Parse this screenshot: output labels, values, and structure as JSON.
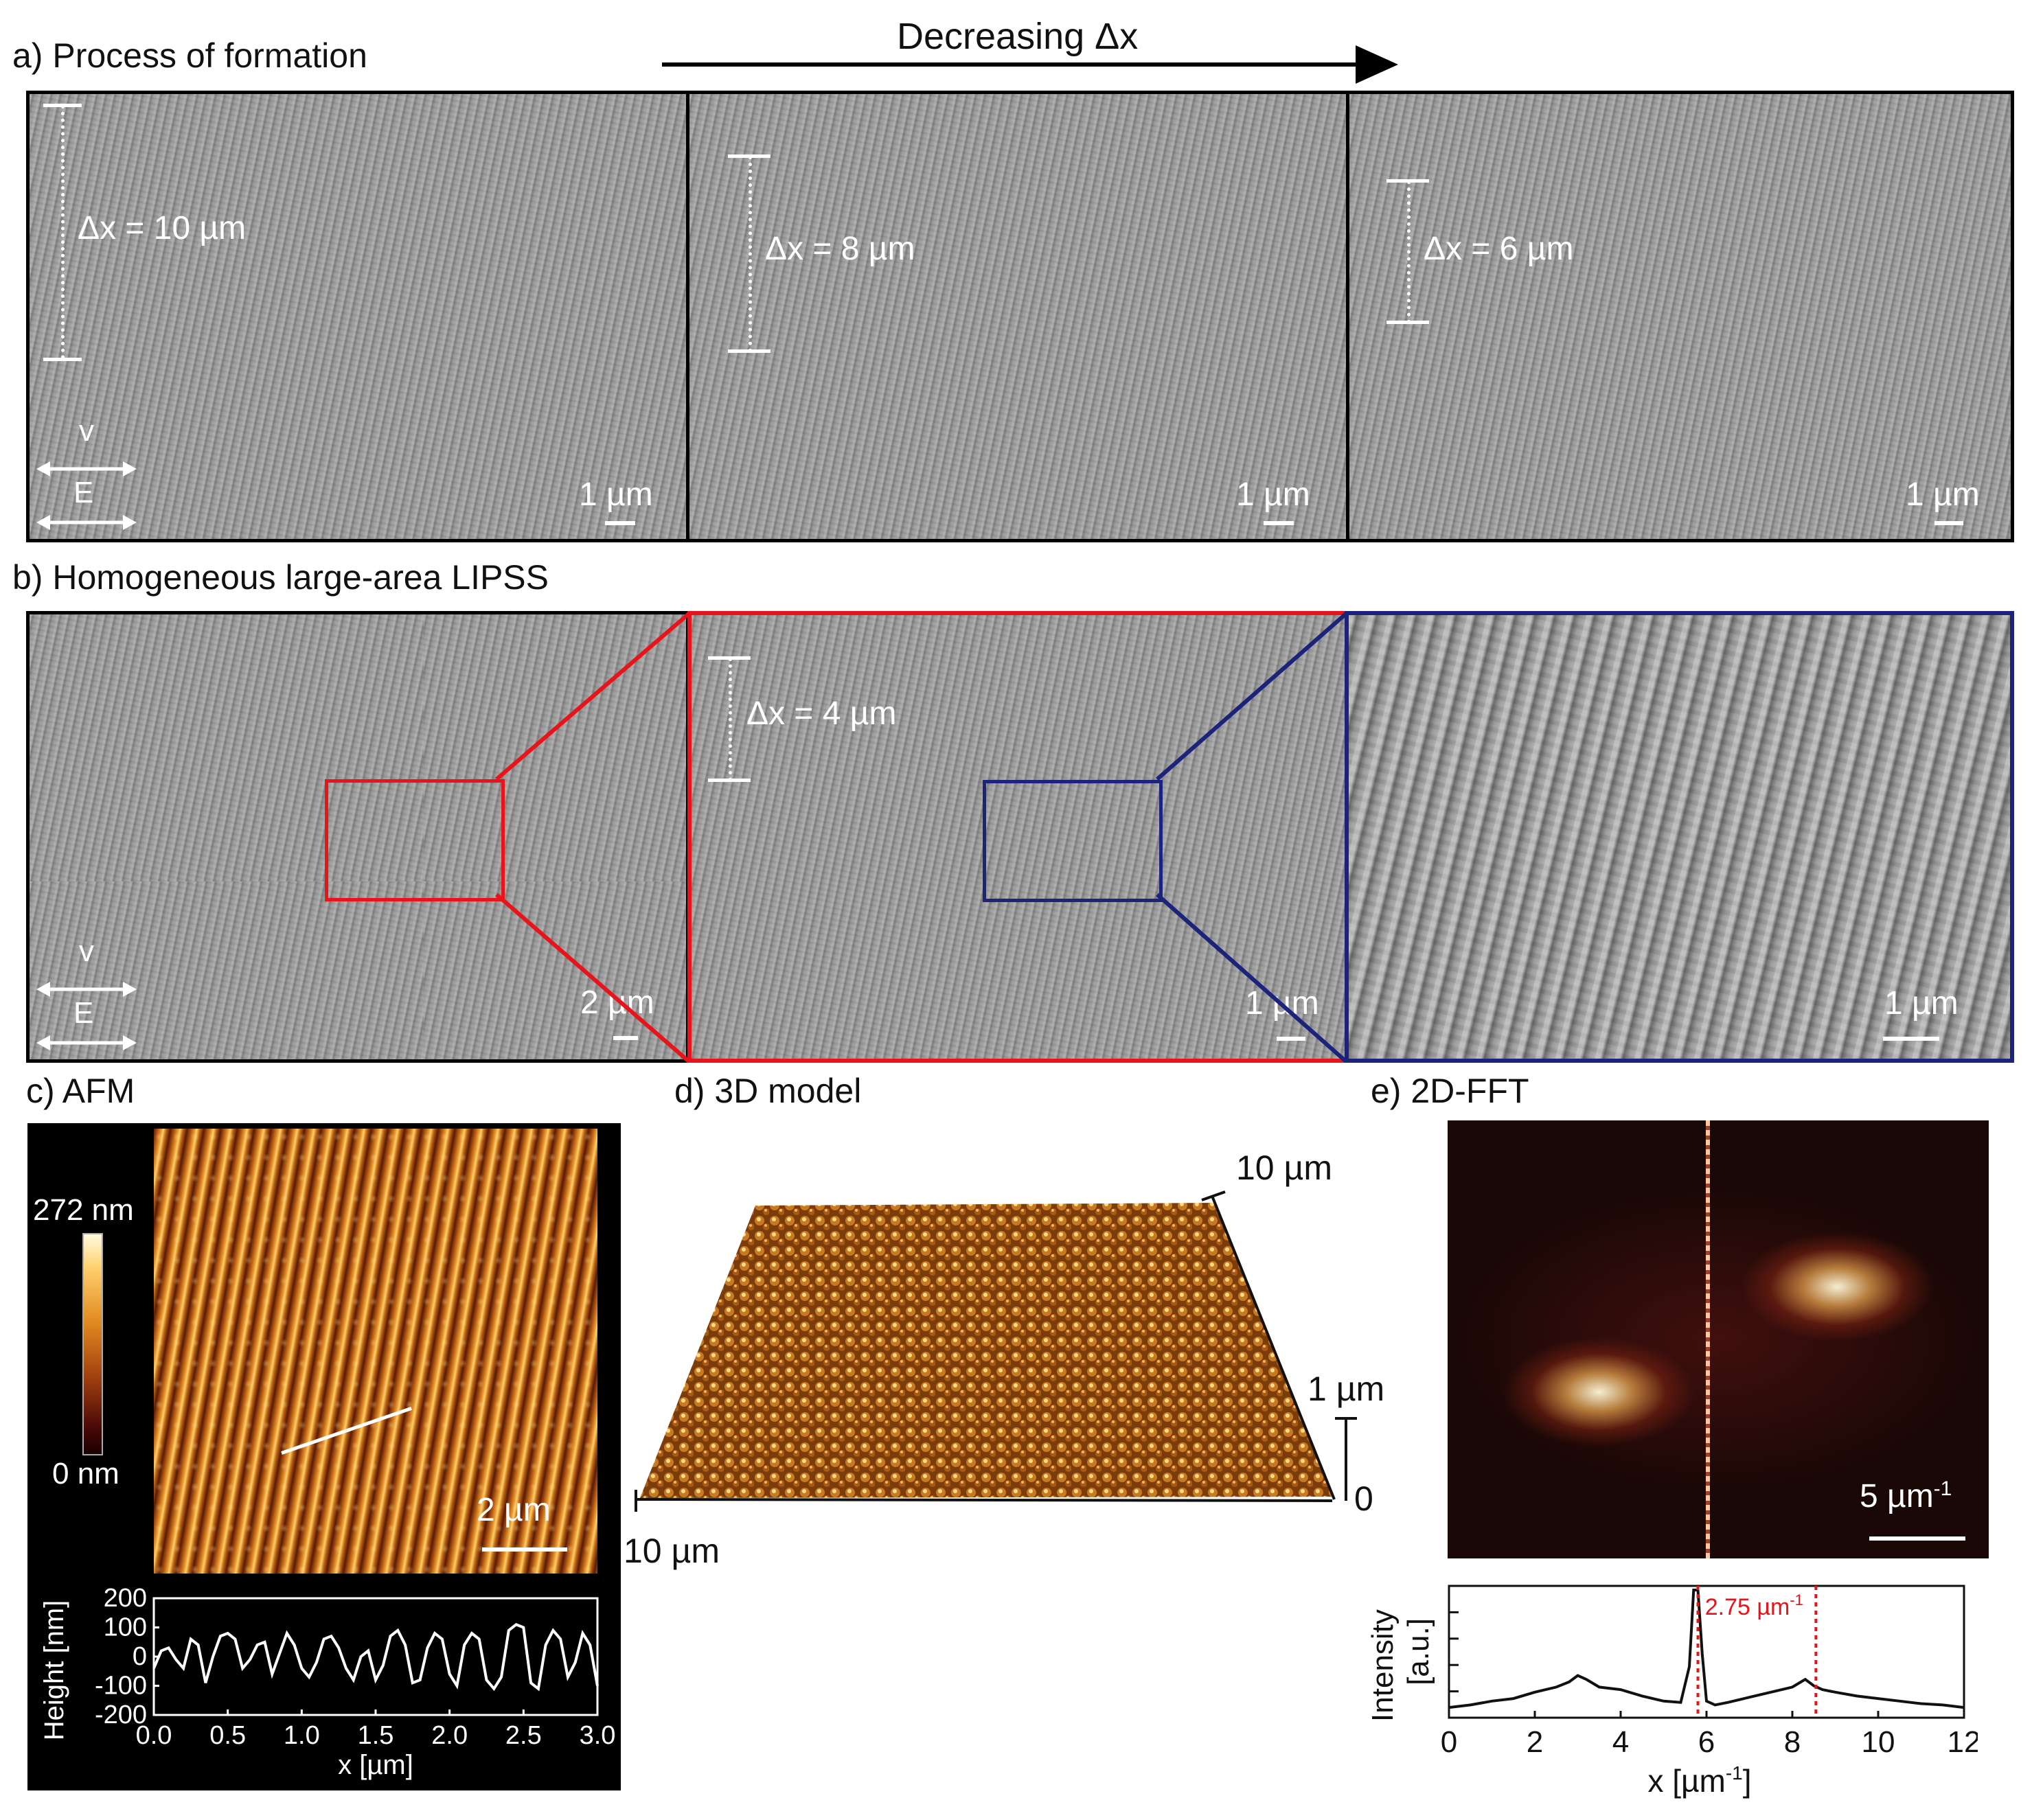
{
  "panel_a": {
    "title": "a) Process of formation",
    "arrow_label": "Decreasing Δx",
    "images": [
      {
        "dx_label": "Δx = 10 µm",
        "scale": "1 µm",
        "v_label": "v",
        "e_label": "E"
      },
      {
        "dx_label": "Δx = 8 µm",
        "scale": "1 µm"
      },
      {
        "dx_label": "Δx = 6 µm",
        "scale": "1 µm"
      }
    ]
  },
  "panel_b": {
    "title": "b) Homogeneous large-area LIPSS",
    "images": [
      {
        "scale": "2 µm",
        "v_label": "v",
        "e_label": "E"
      },
      {
        "dx_label": "Δx = 4 µm",
        "scale": "1 µm"
      },
      {
        "scale": "1 µm"
      }
    ],
    "colors": {
      "red": "#e8141c",
      "blue": "#1b237a"
    }
  },
  "panel_c": {
    "title": "c) AFM",
    "colorbar_max": "272 nm",
    "colorbar_min": "0 nm",
    "scale": "2 µm",
    "profile": {
      "ylabel": "Height [nm]",
      "xlabel": "x [µm]",
      "yticks": [
        "200",
        "100",
        "0",
        "-100",
        "-200"
      ],
      "xticks": [
        "0.0",
        "0.5",
        "1.0",
        "1.5",
        "2.0",
        "2.5",
        "3.0"
      ]
    }
  },
  "panel_d": {
    "title": "d) 3D model",
    "label_top": "10 µm",
    "label_height": "1 µm",
    "label_zero": "0",
    "label_front": "10 µm"
  },
  "panel_e": {
    "title": "e) 2D-FFT",
    "scale": "5 µm",
    "scale_sup": "-1",
    "spectrum": {
      "ylabel_1": "Intensity",
      "ylabel_2": "[a.u.]",
      "xlabel": "x [µm",
      "xlabel_sup": "-1",
      "xlabel_end": "]",
      "annotation": "2.75 µm",
      "annotation_sup": "-1",
      "xticks": [
        "0",
        "2",
        "4",
        "6",
        "8",
        "10",
        "12"
      ]
    }
  },
  "chart_data": [
    {
      "type": "line",
      "title": "",
      "xlabel": "x [µm]",
      "ylabel": "Height [nm]",
      "xlim": [
        0,
        3.0
      ],
      "ylim": [
        -200,
        200
      ],
      "series": [
        {
          "x": [
            0.0,
            0.05,
            0.1,
            0.15,
            0.2,
            0.25,
            0.3,
            0.35,
            0.4,
            0.45,
            0.5,
            0.55,
            0.6,
            0.65,
            0.7,
            0.75,
            0.8,
            0.85,
            0.9,
            0.95,
            1.0,
            1.05,
            1.1,
            1.15,
            1.2,
            1.25,
            1.3,
            1.35,
            1.4,
            1.45,
            1.5,
            1.55,
            1.6,
            1.65,
            1.7,
            1.75,
            1.8,
            1.85,
            1.9,
            1.95,
            2.0,
            2.05,
            2.1,
            2.15,
            2.2,
            2.25,
            2.3,
            2.35,
            2.4,
            2.45,
            2.5,
            2.55,
            2.6,
            2.65,
            2.7,
            2.75,
            2.8,
            2.85,
            2.9,
            2.95,
            3.0
          ],
          "values": [
            -40,
            20,
            30,
            -10,
            -40,
            60,
            40,
            -90,
            0,
            70,
            80,
            60,
            -40,
            -10,
            40,
            50,
            -60,
            10,
            80,
            40,
            -40,
            -70,
            -20,
            60,
            70,
            30,
            -40,
            -80,
            0,
            20,
            -80,
            -30,
            70,
            90,
            40,
            -90,
            -80,
            30,
            80,
            60,
            -60,
            -100,
            40,
            80,
            60,
            -80,
            -110,
            -70,
            90,
            110,
            100,
            -90,
            -110,
            40,
            90,
            60,
            -70,
            -20,
            80,
            40,
            -100
          ]
        }
      ]
    },
    {
      "type": "line",
      "title": "",
      "xlabel": "x [µm-1]",
      "ylabel": "Intensity [a.u.]",
      "xlim": [
        0,
        12
      ],
      "series": [
        {
          "x": [
            0,
            0.5,
            1,
            1.5,
            2,
            2.5,
            2.8,
            3,
            3.2,
            3.5,
            4,
            4.5,
            5,
            5.4,
            5.6,
            5.7,
            5.8,
            5.9,
            6,
            6.2,
            6.5,
            7,
            7.5,
            8,
            8.3,
            8.5,
            8.7,
            9,
            9.5,
            10,
            10.5,
            11,
            11.5,
            12
          ],
          "values": [
            0.08,
            0.1,
            0.13,
            0.15,
            0.2,
            0.24,
            0.28,
            0.33,
            0.3,
            0.24,
            0.22,
            0.17,
            0.13,
            0.12,
            0.4,
            1.0,
            1.0,
            0.5,
            0.13,
            0.1,
            0.12,
            0.16,
            0.2,
            0.24,
            0.3,
            0.25,
            0.22,
            0.2,
            0.17,
            0.15,
            0.13,
            0.11,
            0.1,
            0.08
          ]
        }
      ],
      "annotations": [
        "2.75 µm-1"
      ]
    }
  ]
}
